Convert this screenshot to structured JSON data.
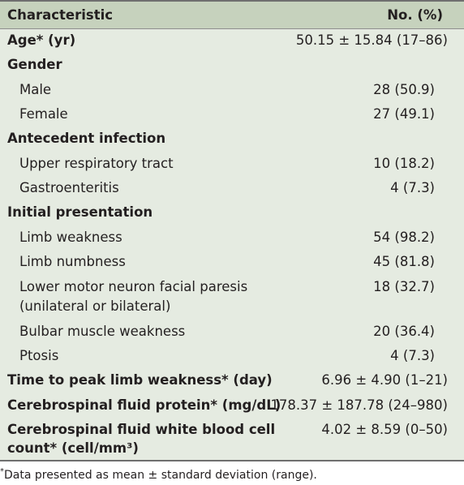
{
  "header": {
    "characteristic": "Characteristic",
    "value": "No. (%)"
  },
  "rows": [
    {
      "label": "Age* (yr)",
      "value": "50.15 ± 15.84 (17–86)"
    },
    {
      "label": "Gender",
      "value": ""
    },
    {
      "label": "Male",
      "value": "28 (50.9)"
    },
    {
      "label": "Female",
      "value": "27 (49.1)"
    },
    {
      "label": "Antecedent infection",
      "value": ""
    },
    {
      "label": "Upper respiratory tract",
      "value": "10 (18.2)"
    },
    {
      "label": "Gastroenteritis",
      "value": "4 (7.3)"
    },
    {
      "label": "Initial presentation",
      "value": ""
    },
    {
      "label": "Limb weakness",
      "value": "54 (98.2)"
    },
    {
      "label": "Limb numbness",
      "value": "45 (81.8)"
    },
    {
      "label_line1": "Lower motor neuron facial paresis",
      "label_line2": "(unilateral or bilateral)",
      "value": "18 (32.7)"
    },
    {
      "label": "Bulbar muscle weakness",
      "value": "20 (36.4)"
    },
    {
      "label": "Ptosis",
      "value": "4 (7.3)"
    },
    {
      "label": "Time to peak limb weakness* (day)",
      "value": "6.96 ± 4.90 (1–21)"
    },
    {
      "label": "Cerebrospinal fluid protein* (mg/dL)",
      "value": "178.37 ± 187.78 (24–980)"
    },
    {
      "label_line1": "Cerebrospinal fluid white blood cell",
      "label_line2": "count* (cell/mm³)",
      "value": "4.02 ± 8.59 (0–50)"
    }
  ],
  "footnote": {
    "mark": "*",
    "text": "Data presented as mean ± standard deviation (range)."
  }
}
